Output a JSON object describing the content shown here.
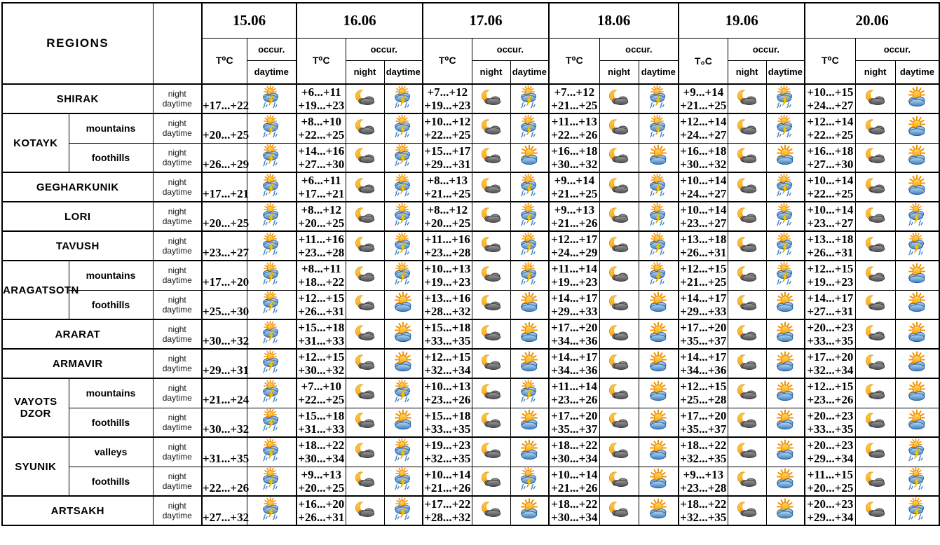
{
  "labels": {
    "regions": "REGIONS",
    "occur": "occur.",
    "night": "night",
    "daytime": "daytime"
  },
  "colors": {
    "border": "#000000",
    "background": "#ffffff",
    "sun": "#ff9d00",
    "cloud_day": "#3a7bbf",
    "cloud_night": "#4c4c50",
    "lightning": "#ffd200",
    "rain": "#3a7bbf",
    "moon": "#f5a000"
  },
  "icon_legend": {
    "thunderstorm": "sun behind rain cloud with lightning and rain streaks",
    "sun-cloud": "sun behind blue cloud (partly cloudy)",
    "moon-cloud": "crescent moon behind dark cloud (night)"
  },
  "chart_data": {
    "type": "table",
    "dates": [
      {
        "label": "15.06",
        "t_label": "T⁰C",
        "icon_columns": [
          "daytime"
        ]
      },
      {
        "label": "16.06",
        "t_label": "T⁰C",
        "icon_columns": [
          "night",
          "daytime"
        ]
      },
      {
        "label": "17.06",
        "t_label": "T⁰C",
        "icon_columns": [
          "night",
          "daytime"
        ]
      },
      {
        "label": "18.06",
        "t_label": "T⁰C",
        "icon_columns": [
          "night",
          "daytime"
        ]
      },
      {
        "label": "19.06",
        "t_label": "T₀C",
        "icon_columns": [
          "night",
          "daytime"
        ]
      },
      {
        "label": "20.06",
        "t_label": "T⁰C",
        "icon_columns": [
          "night",
          "daytime"
        ]
      }
    ],
    "rows": [
      {
        "region": "SHIRAK",
        "sub": null,
        "cells": [
          {
            "day_t": "+17...+22",
            "day_icon": "thunderstorm"
          },
          {
            "night_t": "+6...+11",
            "day_t": "+19...+23",
            "night_icon": "moon-cloud",
            "day_icon": "thunderstorm"
          },
          {
            "night_t": "+7...+12",
            "day_t": "+19...+23",
            "night_icon": "moon-cloud",
            "day_icon": "thunderstorm"
          },
          {
            "night_t": "+7...+12",
            "day_t": "+21...+25",
            "night_icon": "moon-cloud",
            "day_icon": "thunderstorm"
          },
          {
            "night_t": "+9...+14",
            "day_t": "+21...+25",
            "night_icon": "moon-cloud",
            "day_icon": "thunderstorm"
          },
          {
            "night_t": "+10...+15",
            "day_t": "+24...+27",
            "night_icon": "moon-cloud",
            "day_icon": "sun-cloud"
          }
        ]
      },
      {
        "region": "KOTAYK",
        "rowspan": 2,
        "sub": "mountains",
        "cells": [
          {
            "day_t": "+20...+25",
            "day_icon": "thunderstorm"
          },
          {
            "night_t": "+8...+10",
            "day_t": "+22...+25",
            "night_icon": "moon-cloud",
            "day_icon": "thunderstorm"
          },
          {
            "night_t": "+10...+12",
            "day_t": "+22...+25",
            "night_icon": "moon-cloud",
            "day_icon": "thunderstorm"
          },
          {
            "night_t": "+11...+13",
            "day_t": "+22...+26",
            "night_icon": "moon-cloud",
            "day_icon": "thunderstorm"
          },
          {
            "night_t": "+12...+14",
            "day_t": "+24...+27",
            "night_icon": "moon-cloud",
            "day_icon": "thunderstorm"
          },
          {
            "night_t": "+12...+14",
            "day_t": "+22...+25",
            "night_icon": "moon-cloud",
            "day_icon": "sun-cloud"
          }
        ]
      },
      {
        "region": null,
        "sub": "foothills",
        "cells": [
          {
            "day_t": "+26...+29",
            "day_icon": "thunderstorm"
          },
          {
            "night_t": "+14...+16",
            "day_t": "+27...+30",
            "night_icon": "moon-cloud",
            "day_icon": "thunderstorm"
          },
          {
            "night_t": "+15...+17",
            "day_t": "+29...+31",
            "night_icon": "moon-cloud",
            "day_icon": "sun-cloud"
          },
          {
            "night_t": "+16...+18",
            "day_t": "+30...+32",
            "night_icon": "moon-cloud",
            "day_icon": "sun-cloud"
          },
          {
            "night_t": "+16...+18",
            "day_t": "+30...+32",
            "night_icon": "moon-cloud",
            "day_icon": "sun-cloud"
          },
          {
            "night_t": "+16...+18",
            "day_t": "+27...+30",
            "night_icon": "moon-cloud",
            "day_icon": "sun-cloud"
          }
        ]
      },
      {
        "region": "GEGHARKUNIK",
        "sub": null,
        "cells": [
          {
            "day_t": "+17...+21",
            "day_icon": "thunderstorm"
          },
          {
            "night_t": "+6...+11",
            "day_t": "+17...+21",
            "night_icon": "moon-cloud",
            "day_icon": "thunderstorm"
          },
          {
            "night_t": "+8...+13",
            "day_t": "+21...+25",
            "night_icon": "moon-cloud",
            "day_icon": "thunderstorm"
          },
          {
            "night_t": "+9...+14",
            "day_t": "+21...+25",
            "night_icon": "moon-cloud",
            "day_icon": "thunderstorm"
          },
          {
            "night_t": "+10...+14",
            "day_t": "+24...+27",
            "night_icon": "moon-cloud",
            "day_icon": "thunderstorm"
          },
          {
            "night_t": "+10...+14",
            "day_t": "+22...+25",
            "night_icon": "moon-cloud",
            "day_icon": "sun-cloud"
          }
        ]
      },
      {
        "region": "LORI",
        "sub": null,
        "cells": [
          {
            "day_t": "+20...+25",
            "day_icon": "thunderstorm"
          },
          {
            "night_t": "+8...+12",
            "day_t": "+20...+25",
            "night_icon": "moon-cloud",
            "day_icon": "thunderstorm"
          },
          {
            "night_t": "+8...+12",
            "day_t": "+20...+25",
            "night_icon": "moon-cloud",
            "day_icon": "thunderstorm"
          },
          {
            "night_t": "+9...+13",
            "day_t": "+21...+26",
            "night_icon": "moon-cloud",
            "day_icon": "thunderstorm"
          },
          {
            "night_t": "+10...+14",
            "day_t": "+23...+27",
            "night_icon": "moon-cloud",
            "day_icon": "thunderstorm"
          },
          {
            "night_t": "+10...+14",
            "day_t": "+23...+27",
            "night_icon": "moon-cloud",
            "day_icon": "thunderstorm"
          }
        ]
      },
      {
        "region": "TAVUSH",
        "sub": null,
        "cells": [
          {
            "day_t": "+23...+27",
            "day_icon": "thunderstorm"
          },
          {
            "night_t": "+11...+16",
            "day_t": "+23...+28",
            "night_icon": "moon-cloud",
            "day_icon": "thunderstorm"
          },
          {
            "night_t": "+11...+16",
            "day_t": "+23...+28",
            "night_icon": "moon-cloud",
            "day_icon": "thunderstorm"
          },
          {
            "night_t": "+12...+17",
            "day_t": "+24...+29",
            "night_icon": "moon-cloud",
            "day_icon": "thunderstorm"
          },
          {
            "night_t": "+13...+18",
            "day_t": "+26...+31",
            "night_icon": "moon-cloud",
            "day_icon": "thunderstorm"
          },
          {
            "night_t": "+13...+18",
            "day_t": "+26...+31",
            "night_icon": "moon-cloud",
            "day_icon": "thunderstorm"
          }
        ]
      },
      {
        "region": "ARAGATSOTN",
        "rowspan": 2,
        "sub": "mountains",
        "cells": [
          {
            "day_t": "+17...+20",
            "day_icon": "thunderstorm"
          },
          {
            "night_t": "+8...+11",
            "day_t": "+18...+22",
            "night_icon": "moon-cloud",
            "day_icon": "thunderstorm"
          },
          {
            "night_t": "+10...+13",
            "day_t": "+19...+23",
            "night_icon": "moon-cloud",
            "day_icon": "thunderstorm"
          },
          {
            "night_t": "+11...+14",
            "day_t": "+19...+23",
            "night_icon": "moon-cloud",
            "day_icon": "thunderstorm"
          },
          {
            "night_t": "+12...+15",
            "day_t": "+21...+25",
            "night_icon": "moon-cloud",
            "day_icon": "thunderstorm"
          },
          {
            "night_t": "+12...+15",
            "day_t": "+19...+23",
            "night_icon": "moon-cloud",
            "day_icon": "sun-cloud"
          }
        ]
      },
      {
        "region": null,
        "sub": "foothills",
        "cells": [
          {
            "day_t": "+25...+30",
            "day_icon": "thunderstorm"
          },
          {
            "night_t": "+12...+15",
            "day_t": "+26...+31",
            "night_icon": "moon-cloud",
            "day_icon": "sun-cloud"
          },
          {
            "night_t": "+13...+16",
            "day_t": "+28...+32",
            "night_icon": "moon-cloud",
            "day_icon": "sun-cloud"
          },
          {
            "night_t": "+14...+17",
            "day_t": "+29...+33",
            "night_icon": "moon-cloud",
            "day_icon": "sun-cloud"
          },
          {
            "night_t": "+14...+17",
            "day_t": "+29...+33",
            "night_icon": "moon-cloud",
            "day_icon": "sun-cloud"
          },
          {
            "night_t": "+14...+17",
            "day_t": "+27...+31",
            "night_icon": "moon-cloud",
            "day_icon": "sun-cloud"
          }
        ]
      },
      {
        "region": "ARARAT",
        "sub": null,
        "cells": [
          {
            "day_t": "+30...+32",
            "day_icon": "thunderstorm"
          },
          {
            "night_t": "+15...+18",
            "day_t": "+31...+33",
            "night_icon": "moon-cloud",
            "day_icon": "sun-cloud"
          },
          {
            "night_t": "+15...+18",
            "day_t": "+33...+35",
            "night_icon": "moon-cloud",
            "day_icon": "sun-cloud"
          },
          {
            "night_t": "+17...+20",
            "day_t": "+34...+36",
            "night_icon": "moon-cloud",
            "day_icon": "sun-cloud"
          },
          {
            "night_t": "+17...+20",
            "day_t": "+35...+37",
            "night_icon": "moon-cloud",
            "day_icon": "sun-cloud"
          },
          {
            "night_t": "+20...+23",
            "day_t": "+33...+35",
            "night_icon": "moon-cloud",
            "day_icon": "sun-cloud"
          }
        ]
      },
      {
        "region": "ARMAVIR",
        "sub": null,
        "cells": [
          {
            "day_t": "+29...+31",
            "day_icon": "thunderstorm"
          },
          {
            "night_t": "+12...+15",
            "day_t": "+30...+32",
            "night_icon": "moon-cloud",
            "day_icon": "sun-cloud"
          },
          {
            "night_t": "+12...+15",
            "day_t": "+32...+34",
            "night_icon": "moon-cloud",
            "day_icon": "sun-cloud"
          },
          {
            "night_t": "+14...+17",
            "day_t": "+34...+36",
            "night_icon": "moon-cloud",
            "day_icon": "sun-cloud"
          },
          {
            "night_t": "+14...+17",
            "day_t": "+34...+36",
            "night_icon": "moon-cloud",
            "day_icon": "sun-cloud"
          },
          {
            "night_t": "+17...+20",
            "day_t": "+32...+34",
            "night_icon": "moon-cloud",
            "day_icon": "sun-cloud"
          }
        ]
      },
      {
        "region": "VAYOTS DZOR",
        "rowspan": 2,
        "sub": "mountains",
        "cells": [
          {
            "day_t": "+21...+24",
            "day_icon": "thunderstorm"
          },
          {
            "night_t": "+7...+10",
            "day_t": "+22...+25",
            "night_icon": "moon-cloud",
            "day_icon": "thunderstorm"
          },
          {
            "night_t": "+10...+13",
            "day_t": "+23...+26",
            "night_icon": "moon-cloud",
            "day_icon": "thunderstorm"
          },
          {
            "night_t": "+11...+14",
            "day_t": "+23...+26",
            "night_icon": "moon-cloud",
            "day_icon": "sun-cloud"
          },
          {
            "night_t": "+12...+15",
            "day_t": "+25...+28",
            "night_icon": "moon-cloud",
            "day_icon": "sun-cloud"
          },
          {
            "night_t": "+12...+15",
            "day_t": "+23...+26",
            "night_icon": "moon-cloud",
            "day_icon": "sun-cloud"
          }
        ]
      },
      {
        "region": null,
        "sub": "foothills",
        "cells": [
          {
            "day_t": "+30...+32",
            "day_icon": "thunderstorm"
          },
          {
            "night_t": "+15...+18",
            "day_t": "+31...+33",
            "night_icon": "moon-cloud",
            "day_icon": "sun-cloud"
          },
          {
            "night_t": "+15...+18",
            "day_t": "+33...+35",
            "night_icon": "moon-cloud",
            "day_icon": "sun-cloud"
          },
          {
            "night_t": "+17...+20",
            "day_t": "+35...+37",
            "night_icon": "moon-cloud",
            "day_icon": "sun-cloud"
          },
          {
            "night_t": "+17...+20",
            "day_t": "+35...+37",
            "night_icon": "moon-cloud",
            "day_icon": "sun-cloud"
          },
          {
            "night_t": "+20...+23",
            "day_t": "+33...+35",
            "night_icon": "moon-cloud",
            "day_icon": "sun-cloud"
          }
        ]
      },
      {
        "region": "SYUNIK",
        "rowspan": 2,
        "sub": "valleys",
        "cells": [
          {
            "day_t": "+31...+35",
            "day_icon": "thunderstorm"
          },
          {
            "night_t": "+18...+22",
            "day_t": "+30...+34",
            "night_icon": "moon-cloud",
            "day_icon": "thunderstorm"
          },
          {
            "night_t": "+19...+23",
            "day_t": "+32...+35",
            "night_icon": "moon-cloud",
            "day_icon": "sun-cloud"
          },
          {
            "night_t": "+18...+22",
            "day_t": "+30...+34",
            "night_icon": "moon-cloud",
            "day_icon": "sun-cloud"
          },
          {
            "night_t": "+18...+22",
            "day_t": "+32...+35",
            "night_icon": "moon-cloud",
            "day_icon": "sun-cloud"
          },
          {
            "night_t": "+20...+23",
            "day_t": "+29...+34",
            "night_icon": "moon-cloud",
            "day_icon": "thunderstorm"
          }
        ]
      },
      {
        "region": null,
        "sub": "foothills",
        "cells": [
          {
            "day_t": "+22...+26",
            "day_icon": "thunderstorm"
          },
          {
            "night_t": "+9...+13",
            "day_t": "+20...+25",
            "night_icon": "moon-cloud",
            "day_icon": "thunderstorm"
          },
          {
            "night_t": "+10...+14",
            "day_t": "+21...+26",
            "night_icon": "moon-cloud",
            "day_icon": "thunderstorm"
          },
          {
            "night_t": "+10...+14",
            "day_t": "+21...+26",
            "night_icon": "moon-cloud",
            "day_icon": "sun-cloud"
          },
          {
            "night_t": "+9...+13",
            "day_t": "+23...+28",
            "night_icon": "moon-cloud",
            "day_icon": "sun-cloud"
          },
          {
            "night_t": "+11...+15",
            "day_t": "+20...+25",
            "night_icon": "moon-cloud",
            "day_icon": "thunderstorm"
          }
        ]
      },
      {
        "region": "ARTSAKH",
        "sub": null,
        "cells": [
          {
            "day_t": "+27...+32",
            "day_icon": "thunderstorm"
          },
          {
            "night_t": "+16...+20",
            "day_t": "+26...+31",
            "night_icon": "moon-cloud",
            "day_icon": "thunderstorm"
          },
          {
            "night_t": "+17...+22",
            "day_t": "+28...+32",
            "night_icon": "moon-cloud",
            "day_icon": "sun-cloud"
          },
          {
            "night_t": "+18...+22",
            "day_t": "+30...+34",
            "night_icon": "moon-cloud",
            "day_icon": "sun-cloud"
          },
          {
            "night_t": "+18...+22",
            "day_t": "+32...+35",
            "night_icon": "moon-cloud",
            "day_icon": "sun-cloud"
          },
          {
            "night_t": "+20...+23",
            "day_t": "+29...+34",
            "night_icon": "moon-cloud",
            "day_icon": "thunderstorm"
          }
        ]
      }
    ]
  }
}
